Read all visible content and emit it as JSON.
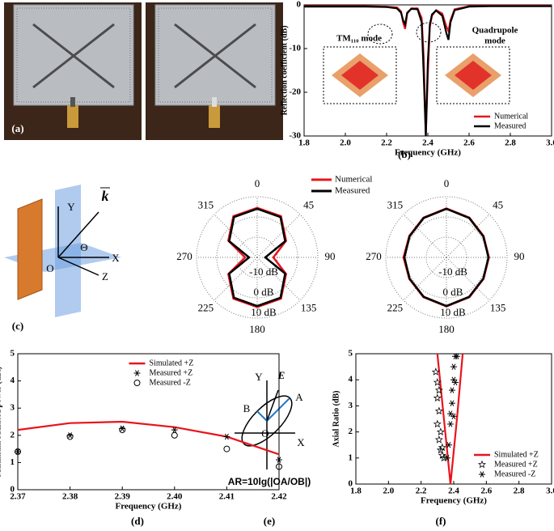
{
  "panels": [
    "(a)",
    "(b)",
    "(c)",
    "(d)",
    "(e)",
    "(f)"
  ],
  "coordinate_diagram": {
    "labels": [
      "Y",
      "X",
      "Z",
      "O",
      "Θ",
      "k"
    ]
  },
  "ellipse_diagram": {
    "labels": [
      "Y",
      "X",
      "A",
      "B",
      "O",
      "E"
    ],
    "formula": "AR=10lg(|OA/OB|)"
  },
  "chart_data": [
    {
      "type": "line",
      "x_label": "Frequency (GHz)",
      "y_label": "Reflection coefficient (dB)",
      "annotations": [
        "TM₁₁₀ mode",
        "Quadrupole",
        "mode"
      ],
      "xlim": [
        1.8,
        3.0
      ],
      "xticks": [
        1.8,
        {
          "value": 2,
          "label": "2.0"
        },
        2.2,
        2.4,
        2.6,
        2.8,
        {
          "value": 3,
          "label": "3.0"
        }
      ],
      "ylim": [
        -30,
        0
      ],
      "yticks": [
        0,
        -10,
        -20,
        -30
      ],
      "legend": "lower right",
      "x": [
        1.8,
        1.9,
        2.0,
        2.1,
        2.2,
        2.25,
        2.27,
        2.28,
        2.29,
        2.3,
        2.32,
        2.35,
        2.37,
        2.38,
        2.39,
        2.4,
        2.41,
        2.42,
        2.44,
        2.47,
        2.49,
        2.5,
        2.51,
        2.53,
        2.6,
        2.7,
        2.8,
        2.9,
        3.0
      ],
      "series": [
        {
          "name": "Numerical",
          "color": "#e8141c",
          "values": [
            -0.3,
            -0.3,
            -0.3,
            -0.3,
            -0.4,
            -0.6,
            -1.5,
            -4,
            -5.5,
            -2,
            -0.8,
            -0.8,
            -3,
            -12,
            -30,
            -16,
            -5,
            -2.5,
            -1.2,
            -2,
            -5,
            -6,
            -3.5,
            -1,
            -0.3,
            -0.2,
            -0.2,
            -0.2,
            -0.2
          ]
        },
        {
          "name": "Measured",
          "color": "#000000",
          "values": [
            -0.4,
            -0.4,
            -0.4,
            -0.4,
            -0.5,
            -0.8,
            -1.8,
            -3.5,
            -4.5,
            -1.8,
            -0.9,
            -1,
            -4,
            -16,
            -30,
            -13,
            -4.5,
            -2.2,
            -1.3,
            -2.5,
            -6.5,
            -8,
            -4,
            -1.2,
            -0.4,
            -0.3,
            -0.3,
            -0.3,
            -0.3
          ]
        }
      ]
    },
    {
      "type": "polar",
      "rlim": [
        -20,
        10
      ],
      "angle_ticks": [
        0,
        45,
        90,
        135,
        180,
        225,
        270,
        315
      ],
      "radial_ticks": [
        {
          "value": -10,
          "label": "-10 dB"
        },
        {
          "value": 0,
          "label": "0 dB"
        },
        {
          "value": 10,
          "label": "10 dB"
        }
      ],
      "theta": [
        0,
        30,
        60,
        90,
        120,
        150,
        180,
        210,
        240,
        270,
        300,
        330
      ],
      "series": [
        {
          "name": "Numerical",
          "color": "#e8141c",
          "values": [
            4.5,
            3.5,
            -3.5,
            -12,
            -3.5,
            3.5,
            4.5,
            3.5,
            -3.5,
            -14,
            -3.5,
            3.5
          ]
        },
        {
          "name": "Measured",
          "color": "#000000",
          "values": [
            4,
            3,
            -4,
            -16,
            -4,
            3,
            4,
            3,
            -4,
            -16,
            -4,
            3
          ]
        }
      ]
    },
    {
      "type": "polar",
      "rlim": [
        -20,
        10
      ],
      "angle_ticks": [
        0,
        45,
        90,
        135,
        180,
        225,
        270,
        315
      ],
      "radial_ticks": [
        {
          "value": -10,
          "label": "-10 dB"
        },
        {
          "value": 0,
          "label": "0 dB"
        },
        {
          "value": 10,
          "label": "10 dB"
        }
      ],
      "theta": [
        0,
        30,
        60,
        90,
        120,
        150,
        180,
        210,
        240,
        270,
        300,
        330
      ],
      "series": [
        {
          "color": "#e8141c",
          "values": [
            4.2,
            2.7,
            1.2,
            1,
            1.2,
            2.7,
            4.2,
            2.7,
            1.2,
            1.2,
            1.2,
            2.7
          ]
        },
        {
          "color": "#000000",
          "values": [
            4,
            2.5,
            1,
            0.8,
            1,
            2.5,
            4,
            2.5,
            1,
            0.8,
            1,
            2.5
          ]
        }
      ]
    },
    {
      "type": "line",
      "x_label": "Frequency (GHz)",
      "y_label": "Maximum radiated power (dBi)",
      "xlim": [
        2.37,
        2.42
      ],
      "xticks": [
        2.37,
        2.38,
        2.39,
        {
          "value": 2.4,
          "label": "2.40"
        },
        2.41,
        2.42
      ],
      "ylim": [
        0,
        5
      ],
      "yticks": [
        0,
        1,
        2,
        3,
        4,
        5
      ],
      "legend": "upper center",
      "x": [
        2.37,
        2.38,
        2.39,
        2.4,
        2.41,
        2.42
      ],
      "series": [
        {
          "name": "Simulated +Z",
          "color": "#e8141c",
          "values": [
            2.2,
            2.45,
            2.5,
            2.3,
            1.95,
            1.3
          ]
        },
        {
          "name": "Measured +Z",
          "color": "#000000",
          "marker": "asterisk",
          "values": [
            1.4,
            2,
            2.25,
            2.2,
            1.95,
            1.1
          ]
        },
        {
          "name": "Measured -Z",
          "color": "#000000",
          "marker": "circle",
          "values": [
            1.4,
            1.95,
            2.2,
            2,
            1.5,
            0.85
          ]
        }
      ]
    },
    {
      "type": "line",
      "x_label": "Frequency (GHz)",
      "y_label": "Axial Ratio (dB)",
      "xlim": [
        1.8,
        3.0
      ],
      "xticks": [
        1.8,
        {
          "value": 2,
          "label": "2.0"
        },
        2.2,
        2.4,
        2.6,
        2.8,
        {
          "value": 3,
          "label": "3.0"
        }
      ],
      "ylim": [
        0,
        5
      ],
      "yticks": [
        0,
        1,
        2,
        3,
        4,
        5
      ],
      "legend": "lower right",
      "series": [
        {
          "name": "Simulated +Z",
          "color": "#e8141c",
          "x": [
            2.3,
            2.34,
            2.38,
            2.42,
            2.455
          ],
          "values": [
            5,
            2.5,
            0,
            2.5,
            5
          ]
        },
        {
          "name": "Measured +Z",
          "color": "#000000",
          "marker": "star",
          "x": [
            2.29,
            2.3,
            2.3,
            2.31,
            2.3,
            2.31,
            2.32,
            2.33,
            2.34,
            2.33,
            2.32,
            2.31
          ],
          "values": [
            4.3,
            3.9,
            3.3,
            2.8,
            2.3,
            1.7,
            1.3,
            1.1,
            1,
            1.4,
            2,
            3.6
          ]
        },
        {
          "name": "Measured -Z",
          "color": "#000000",
          "marker": "asterisk",
          "x": [
            2.36,
            2.37,
            2.38,
            2.38,
            2.39,
            2.39,
            2.4,
            2.4,
            2.41,
            2.42,
            2.41,
            2.4
          ],
          "values": [
            1,
            1.5,
            2.3,
            2.7,
            3.1,
            3.6,
            4,
            4.5,
            4.9,
            4.9,
            3.9,
            2.6
          ]
        }
      ]
    }
  ]
}
